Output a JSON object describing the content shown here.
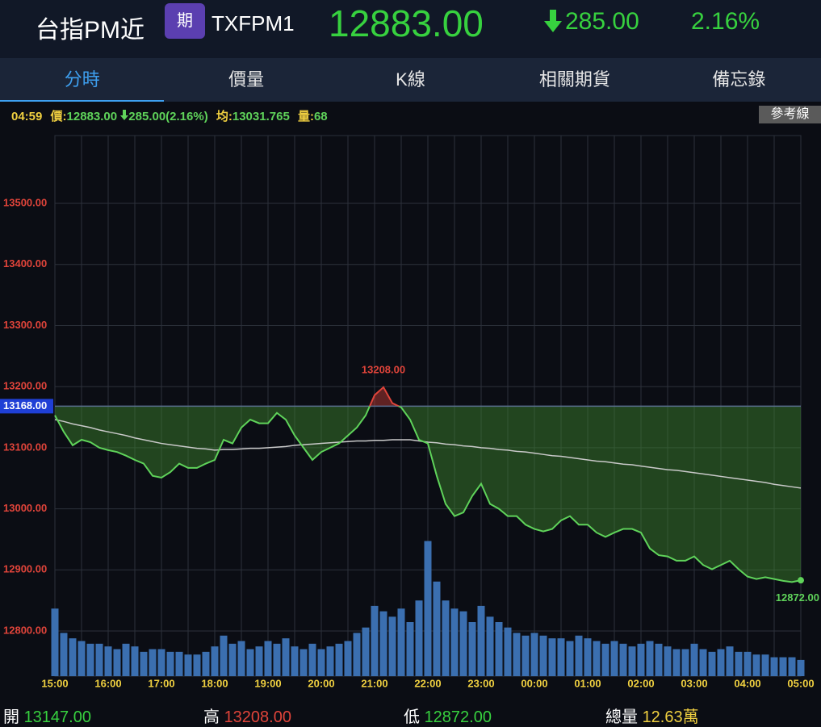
{
  "header": {
    "name": "台指PM近",
    "badge": "期",
    "code": "TXFPM1",
    "price": "12883.00",
    "change": "285.00",
    "percent": "2.16%"
  },
  "tabs": [
    "分時",
    "價量",
    "K線",
    "相關期貨",
    "備忘錄"
  ],
  "info": {
    "time": "04:59",
    "price_label": "價:",
    "price": "12883.00",
    "change": "285.00(2.16%)",
    "avg_label": "均:",
    "avg": "13031.765",
    "vol_label": "量:",
    "vol": "68",
    "button": "參考線"
  },
  "footer": {
    "open_label": "開",
    "open": "13147.00",
    "high_label": "高",
    "high": "13208.00",
    "low_label": "低",
    "low": "12872.00",
    "total_label": "總量",
    "total": "12.63萬"
  },
  "chart_data": {
    "type": "line",
    "categories": [
      "15:00",
      null,
      null,
      null,
      null,
      null,
      "16:00",
      null,
      null,
      null,
      null,
      null,
      "17:00",
      null,
      null,
      null,
      null,
      null,
      "18:00",
      null,
      null,
      null,
      null,
      null,
      "19:00",
      null,
      null,
      null,
      null,
      null,
      "20:00",
      null,
      null,
      null,
      null,
      null,
      "21:00",
      null,
      null,
      null,
      null,
      null,
      "22:00",
      null,
      null,
      null,
      null,
      null,
      "23:00",
      null,
      null,
      null,
      null,
      null,
      "00:00",
      null,
      null,
      null,
      null,
      null,
      "01:00",
      null,
      null,
      null,
      null,
      null,
      "02:00",
      null,
      null,
      null,
      null,
      null,
      "03:00",
      null,
      null,
      null,
      null,
      null,
      "04:00",
      null,
      null,
      null,
      null,
      null,
      "05:00"
    ],
    "values": [
      13153,
      13126,
      13104,
      13113,
      13109,
      13100,
      13096,
      13093,
      13087,
      13080,
      13074,
      13054,
      13051,
      13060,
      13074,
      13067,
      13067,
      13074,
      13080,
      13113,
      13107,
      13133,
      13146,
      13140,
      13140,
      13157,
      13146,
      13120,
      13100,
      13080,
      13093,
      13100,
      13107,
      13120,
      13133,
      13153,
      13186,
      13199,
      13173,
      13166,
      13146,
      13113,
      13107,
      13054,
      13008,
      12988,
      12994,
      13021,
      13041,
      13008,
      13000,
      12988,
      12988,
      12974,
      12967,
      12963,
      12967,
      12981,
      12988,
      12974,
      12974,
      12961,
      12954,
      12961,
      12967,
      12967,
      12961,
      12935,
      12924,
      12922,
      12915,
      12915,
      12922,
      12908,
      12901,
      12908,
      12915,
      12901,
      12889,
      12885,
      12888,
      12885,
      12882,
      12880,
      12883
    ],
    "color": "#5fd35a",
    "up_color": "#e0443a",
    "average_values": [
      13146,
      13143,
      13139,
      13136,
      13133,
      13129,
      13126,
      13123,
      13120,
      13116,
      13113,
      13110,
      13107,
      13105,
      13103,
      13101,
      13099,
      13098,
      13096,
      13097,
      13097,
      13098,
      13099,
      13099,
      13100,
      13101,
      13102,
      13104,
      13105,
      13106,
      13107,
      13108,
      13109,
      13110,
      13111,
      13111,
      13112,
      13112,
      13113,
      13113,
      13113,
      13111,
      13109,
      13108,
      13106,
      13105,
      13103,
      13102,
      13100,
      13099,
      13097,
      13096,
      13094,
      13093,
      13091,
      13089,
      13087,
      13086,
      13084,
      13082,
      13080,
      13078,
      13077,
      13075,
      13073,
      13072,
      13070,
      13068,
      13066,
      13064,
      13063,
      13061,
      13059,
      13057,
      13055,
      13053,
      13051,
      13049,
      13047,
      13045,
      13043,
      13040,
      13038,
      13036,
      13034
    ],
    "average_color": "#c9c9c9",
    "volume_values": [
      2500,
      1600,
      1400,
      1300,
      1200,
      1200,
      1100,
      1000,
      1200,
      1100,
      900,
      1000,
      1000,
      900,
      900,
      800,
      800,
      900,
      1100,
      1500,
      1200,
      1300,
      1000,
      1100,
      1300,
      1200,
      1400,
      1100,
      1000,
      1200,
      1000,
      1100,
      1200,
      1300,
      1600,
      1800,
      2600,
      2400,
      2200,
      2500,
      2000,
      2800,
      5000,
      3500,
      2800,
      2500,
      2400,
      2000,
      2600,
      2200,
      2000,
      1800,
      1600,
      1500,
      1600,
      1500,
      1400,
      1400,
      1300,
      1500,
      1400,
      1300,
      1200,
      1300,
      1200,
      1100,
      1200,
      1300,
      1200,
      1100,
      1000,
      1000,
      1200,
      1000,
      900,
      1000,
      1100,
      900,
      900,
      800,
      800,
      700,
      700,
      700,
      600
    ],
    "volume_color": "#3b6fb0",
    "y2lim": [
      0,
      20000
    ],
    "reference": {
      "value": 13168,
      "label": "13168.00"
    },
    "high_point": {
      "value": 13208,
      "label": "13208.00"
    },
    "low_point": {
      "value": 12872,
      "label": "12872.00"
    },
    "ylim": [
      12726,
      13611
    ],
    "yticks": [
      {
        "value": 12800,
        "label": "12800.00"
      },
      {
        "value": 12900,
        "label": "12900.00"
      },
      {
        "value": 13000,
        "label": "13000.00"
      },
      {
        "value": 13100,
        "label": "13100.00"
      },
      {
        "value": 13200,
        "label": "13200.00"
      },
      {
        "value": 13300,
        "label": "13300.00"
      },
      {
        "value": 13400,
        "label": "13400.00"
      },
      {
        "value": 13500,
        "label": "13500.00"
      }
    ],
    "grid": true
  }
}
